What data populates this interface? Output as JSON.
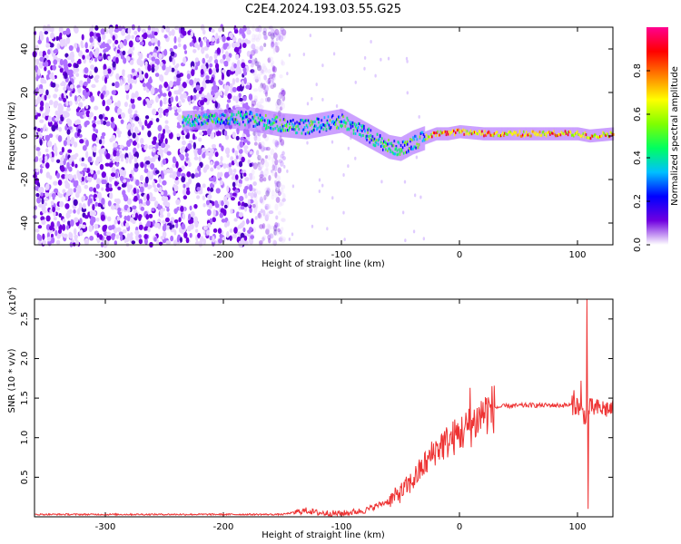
{
  "title": "C2E4.2024.193.03.55.G25",
  "chart_data": [
    {
      "type": "heatmap",
      "xlabel": "Height of straight line (km)",
      "ylabel": "Frequency (Hz)",
      "xlim": [
        -360,
        130
      ],
      "ylim": [
        -50,
        50
      ],
      "xticks": [
        -300,
        -200,
        -100,
        0,
        100
      ],
      "yticks": [
        -40,
        -20,
        0,
        20,
        40
      ],
      "colorbar": {
        "label": "Normalized spectral amplitude",
        "range": [
          0.0,
          1.0
        ],
        "ticks": [
          "0.0",
          "0.2",
          "0.4",
          "0.6",
          "0.8"
        ],
        "colors": [
          "#ffffff",
          "#7000e0",
          "#0000ff",
          "#00c0ff",
          "#00ff60",
          "#80ff00",
          "#ffff00",
          "#ff8000",
          "#ff0000",
          "#ff0090"
        ]
      },
      "noise_region": {
        "x_range": [
          -360,
          -160
        ],
        "density": "high"
      },
      "signal_track": {
        "x": [
          -235,
          -180,
          -150,
          -130,
          -110,
          -100,
          -90,
          -80,
          -70,
          -60,
          -50,
          -40,
          -30,
          -20,
          -10,
          0,
          20,
          40,
          60,
          80,
          100,
          110,
          130
        ],
        "y": [
          7,
          8,
          5,
          4,
          6,
          7,
          4,
          1,
          -2,
          -5,
          -6,
          -3,
          -1,
          1,
          1,
          2,
          1,
          1,
          1,
          1,
          1,
          0,
          1
        ]
      }
    },
    {
      "type": "line",
      "xlabel": "Height of straight line (km)",
      "ylabel": "SNR (10 * v/v)",
      "y_scale_label": "(x10",
      "y_scale_exp": "4",
      "y_scale_close": ")",
      "xlim": [
        -360,
        130
      ],
      "ylim": [
        0.0,
        2.75
      ],
      "xticks": [
        -300,
        -200,
        -100,
        0,
        100
      ],
      "yticks": [
        "0.5",
        "1.0",
        "1.5",
        "2.0",
        "2.5"
      ],
      "series": [
        {
          "color": "#ee3333",
          "x": [
            -360,
            -300,
            -250,
            -200,
            -150,
            -130,
            -120,
            -100,
            -80,
            -60,
            -50,
            -40,
            -30,
            -20,
            -10,
            0,
            10,
            20,
            30,
            40,
            60,
            80,
            100,
            105,
            108,
            110,
            115,
            130
          ],
          "y": [
            0.03,
            0.03,
            0.03,
            0.03,
            0.03,
            0.08,
            0.05,
            0.04,
            0.08,
            0.2,
            0.3,
            0.45,
            0.65,
            0.85,
            0.95,
            1.05,
            1.15,
            1.3,
            1.38,
            1.4,
            1.41,
            1.41,
            1.41,
            1.3,
            1.25,
            1.38,
            1.37,
            1.36
          ],
          "spikes": [
            {
              "x": -50,
              "y": 0.38
            },
            {
              "x": -28,
              "y": 0.72
            },
            {
              "x": -15,
              "y": 1.05
            },
            {
              "x": 9,
              "y": 1.63
            },
            {
              "x": 20,
              "y": 1.45
            },
            {
              "x": 97,
              "y": 1.6
            },
            {
              "x": 103,
              "y": 1.72
            },
            {
              "x": 108,
              "y": 2.75
            },
            {
              "x": 109,
              "y": 0.1
            }
          ]
        }
      ]
    }
  ]
}
